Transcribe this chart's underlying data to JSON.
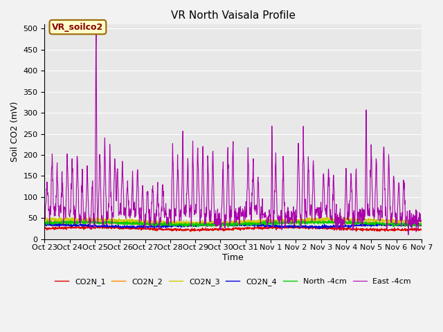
{
  "title": "VR North Vaisala Profile",
  "ylabel": "Soil CO2 (mV)",
  "xlabel": "Time",
  "ylim": [
    0,
    510
  ],
  "yticks": [
    0,
    50,
    100,
    150,
    200,
    250,
    300,
    350,
    400,
    450,
    500
  ],
  "xtick_labels": [
    "Oct 23",
    "Oct 24",
    "Oct 25",
    "Oct 26",
    "Oct 27",
    "Oct 28",
    "Oct 29",
    "Oct 30",
    "Oct 31",
    "Nov 1",
    "Nov 2",
    "Nov 3",
    "Nov 4",
    "Nov 5",
    "Nov 6",
    "Nov 7"
  ],
  "annotation_label": "VR_soilco2",
  "series_colors": {
    "CO2N_1": "#dd0000",
    "CO2N_2": "#ff8800",
    "CO2N_3": "#cccc00",
    "CO2N_4": "#0000dd",
    "North_4cm": "#00cc00",
    "East_4cm": "#aa00aa"
  },
  "legend_labels": [
    "CO2N_1",
    "CO2N_2",
    "CO2N_3",
    "CO2N_4",
    "North -4cm",
    "East -4cm"
  ],
  "bg_color": "#e8e8e8",
  "fig_bg_color": "#f2f2f2",
  "title_fontsize": 11,
  "axis_label_fontsize": 9,
  "tick_fontsize": 8
}
